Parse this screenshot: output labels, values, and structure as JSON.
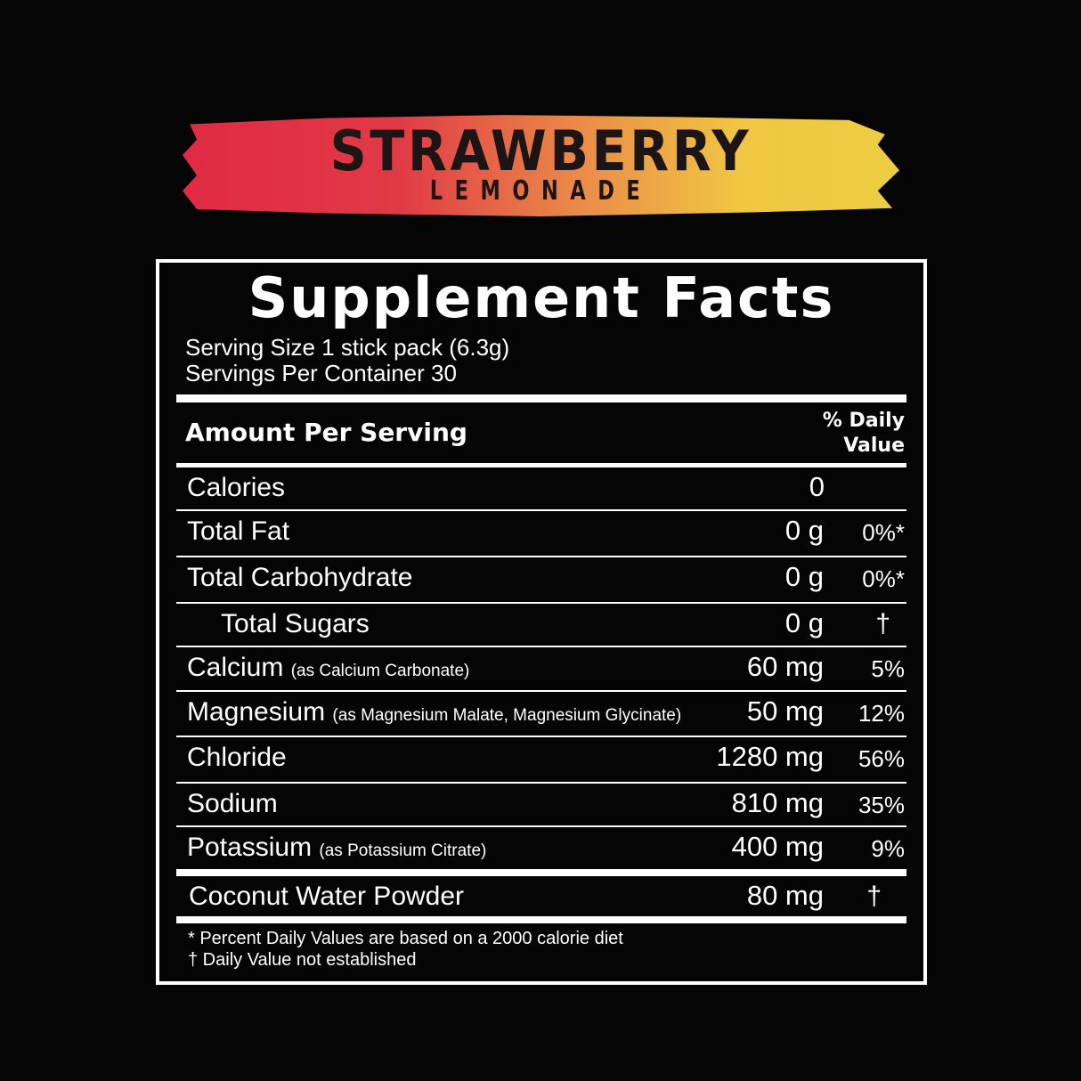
{
  "banner": {
    "title": "STRAWBERRY",
    "subtitle": "LEMONADE",
    "colors": [
      "#e02a44",
      "#ea8a48",
      "#eccd42"
    ]
  },
  "facts": {
    "title": "Supplement Facts",
    "serving_size": "Serving Size 1 stick pack (6.3g)",
    "servings_per_container": "Servings Per Container 30",
    "amount_header": "Amount Per Serving",
    "dv_header_1": "% Daily",
    "dv_header_2": "Value",
    "rows": [
      {
        "name": "Calories",
        "note": "",
        "amount": "0",
        "dv": ""
      },
      {
        "name": "Total Fat",
        "note": "",
        "amount": "0 g",
        "dv": "0%*"
      },
      {
        "name": "Total Carbohydrate",
        "note": "",
        "amount": "0 g",
        "dv": "0%*"
      },
      {
        "name": "Total Sugars",
        "note": "",
        "amount": "0 g",
        "dv": "†"
      },
      {
        "name": "Calcium",
        "note": "(as Calcium Carbonate)",
        "amount": "60 mg",
        "dv": "5%"
      },
      {
        "name": "Magnesium",
        "note": "(as Magnesium Malate, Magnesium Glycinate)",
        "amount": "50 mg",
        "dv": "12%"
      },
      {
        "name": "Chloride",
        "note": "",
        "amount": "1280 mg",
        "dv": "56%"
      },
      {
        "name": "Sodium",
        "note": "",
        "amount": "810 mg",
        "dv": "35%"
      },
      {
        "name": "Potassium",
        "note": "(as Potassium Citrate)",
        "amount": "400 mg",
        "dv": "9%"
      },
      {
        "name": "Coconut Water Powder",
        "note": "",
        "amount": "80 mg",
        "dv": "†"
      }
    ],
    "footnote_1": "* Percent Daily Values are based on a 2000 calorie diet",
    "footnote_2": "† Daily Value not established"
  }
}
